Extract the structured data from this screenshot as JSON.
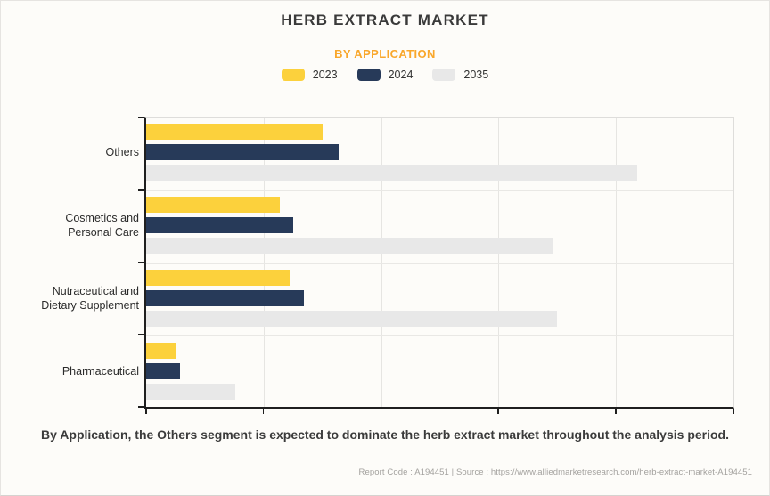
{
  "header": {
    "title": "HERB EXTRACT MARKET",
    "subtitle": "BY APPLICATION"
  },
  "legend": [
    {
      "label": "2023",
      "color": "#FCD13C"
    },
    {
      "label": "2024",
      "color": "#273A59"
    },
    {
      "label": "2035",
      "color": "#E8E8E8"
    }
  ],
  "chart_data": {
    "type": "bar",
    "orientation": "horizontal",
    "title": "HERB EXTRACT MARKET",
    "subtitle": "BY APPLICATION",
    "categories": [
      "Others",
      "Cosmetics and Personal Care",
      "Nutraceutical and Dietary Supplement",
      "Pharmaceutical"
    ],
    "series": [
      {
        "name": "2023",
        "color": "#FCD13C",
        "values": [
          1.5,
          1.14,
          1.22,
          0.26
        ]
      },
      {
        "name": "2024",
        "color": "#273A59",
        "values": [
          1.64,
          1.25,
          1.34,
          0.29
        ]
      },
      {
        "name": "2035",
        "color": "#E8E8E8",
        "values": [
          4.18,
          3.47,
          3.5,
          0.76
        ]
      }
    ],
    "xlabel": "",
    "ylabel": "",
    "xlim": [
      0,
      5
    ],
    "x_tick_labels_visible": false,
    "grid": true,
    "legend_position": "top",
    "value_note": "No numeric axis labels shown; values estimated in gridline units (axis spans 5 gridline intervals)"
  },
  "footer": {
    "summary": "By Application, the Others segment is expected to dominate the herb extract market throughout the analysis period.",
    "report_line": "Report Code : A194451  |  Source : https://www.alliedmarketresearch.com/herb-extract-market-A194451"
  },
  "colors": {
    "background": "#FDFCF9",
    "accent_orange": "#F9A72B",
    "series_2023": "#FCD13C",
    "series_2024": "#273A59",
    "series_2035": "#E8E8E8",
    "axis": "#1F1F1F",
    "gridline": "#E6E5E2"
  }
}
